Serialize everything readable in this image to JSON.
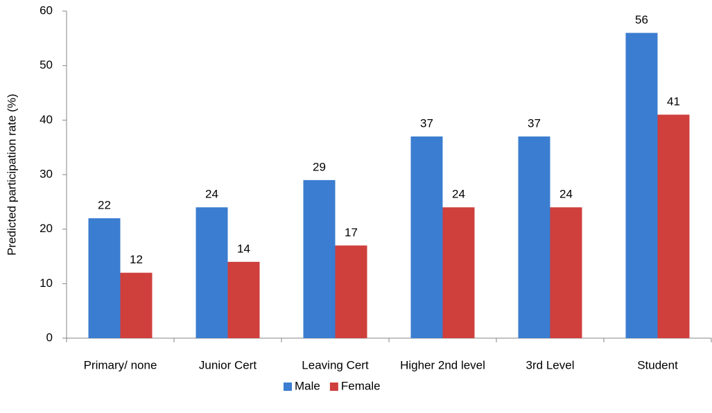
{
  "chart_data": {
    "type": "bar",
    "y_label": "Predicted participation rate (%)",
    "categories": [
      "Primary/ none",
      "Junior Cert",
      "Leaving Cert",
      "Higher 2nd level",
      "3rd Level",
      "Student"
    ],
    "series": [
      {
        "name": "Male",
        "color": "#3b7dd0",
        "values": [
          22,
          24,
          29,
          37,
          37,
          56
        ]
      },
      {
        "name": "Female",
        "color": "#cf3f3c",
        "values": [
          12,
          14,
          17,
          24,
          24,
          41
        ]
      }
    ],
    "ylim": [
      0,
      60
    ],
    "yticks": [
      0,
      10,
      20,
      30,
      40,
      50,
      60
    ],
    "grid": false,
    "legend": "bottom"
  }
}
